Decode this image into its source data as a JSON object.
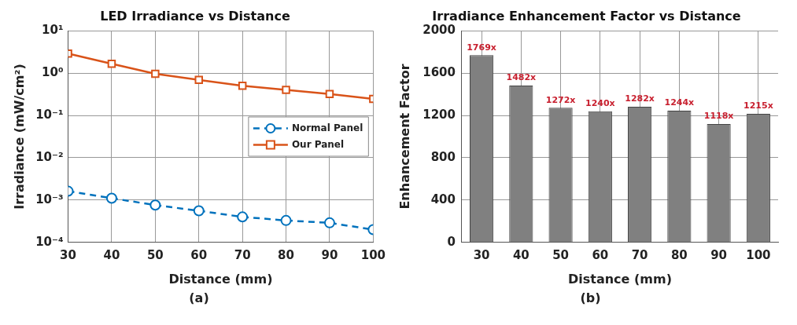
{
  "chart_data": [
    {
      "type": "line",
      "title": "LED Irradiance vs Distance",
      "xlabel": "Distance (mm)",
      "ylabel": "Irradiance (mW/cm²)",
      "x": [
        30,
        40,
        50,
        60,
        70,
        80,
        90,
        100
      ],
      "series": [
        {
          "name": "Normal Panel",
          "color": "#0072bd",
          "marker": "circle",
          "line_style": "dashed",
          "values": [
            0.00162,
            0.00111,
            0.00076,
            0.00056,
            0.0004,
            0.00033,
            0.00029,
            0.0002
          ]
        },
        {
          "name": "Our Panel",
          "color": "#d95319",
          "marker": "square",
          "line_style": "solid",
          "values": [
            2.9,
            1.66,
            0.96,
            0.69,
            0.5,
            0.4,
            0.32,
            0.245
          ]
        }
      ],
      "log": "y",
      "xlim": [
        30,
        100
      ],
      "xticks": [
        30,
        40,
        50,
        60,
        70,
        80,
        90,
        100
      ],
      "ylim": [
        0.0001,
        10
      ],
      "yticks": [
        {
          "value": 0.0001,
          "label": "10⁻⁴"
        },
        {
          "value": 0.001,
          "label": "10⁻³"
        },
        {
          "value": 0.01,
          "label": "10⁻²"
        },
        {
          "value": 0.1,
          "label": "10⁻¹"
        },
        {
          "value": 1,
          "label": "10⁰"
        },
        {
          "value": 10,
          "label": "10¹"
        }
      ],
      "grid": true,
      "legend": "right",
      "annotations": [
        "(a)"
      ]
    },
    {
      "type": "bar",
      "title": "Irradiance Enhancement Factor vs Distance",
      "xlabel": "Distance (mm)",
      "ylabel": "Enhancement Factor",
      "categories": [
        "30",
        "40",
        "50",
        "60",
        "70",
        "80",
        "90",
        "100"
      ],
      "values": [
        1769,
        1482,
        1272,
        1240,
        1282,
        1244,
        1118,
        1215
      ],
      "color": "#808080",
      "value_labels": [
        "1769x",
        "1482x",
        "1272x",
        "1240x",
        "1282x",
        "1244x",
        "1118x",
        "1215x"
      ],
      "ylim": [
        0,
        2000
      ],
      "yticks": [
        0,
        400,
        800,
        1200,
        1600,
        2000
      ],
      "grid": true,
      "annotations": [
        "(b)"
      ]
    }
  ]
}
